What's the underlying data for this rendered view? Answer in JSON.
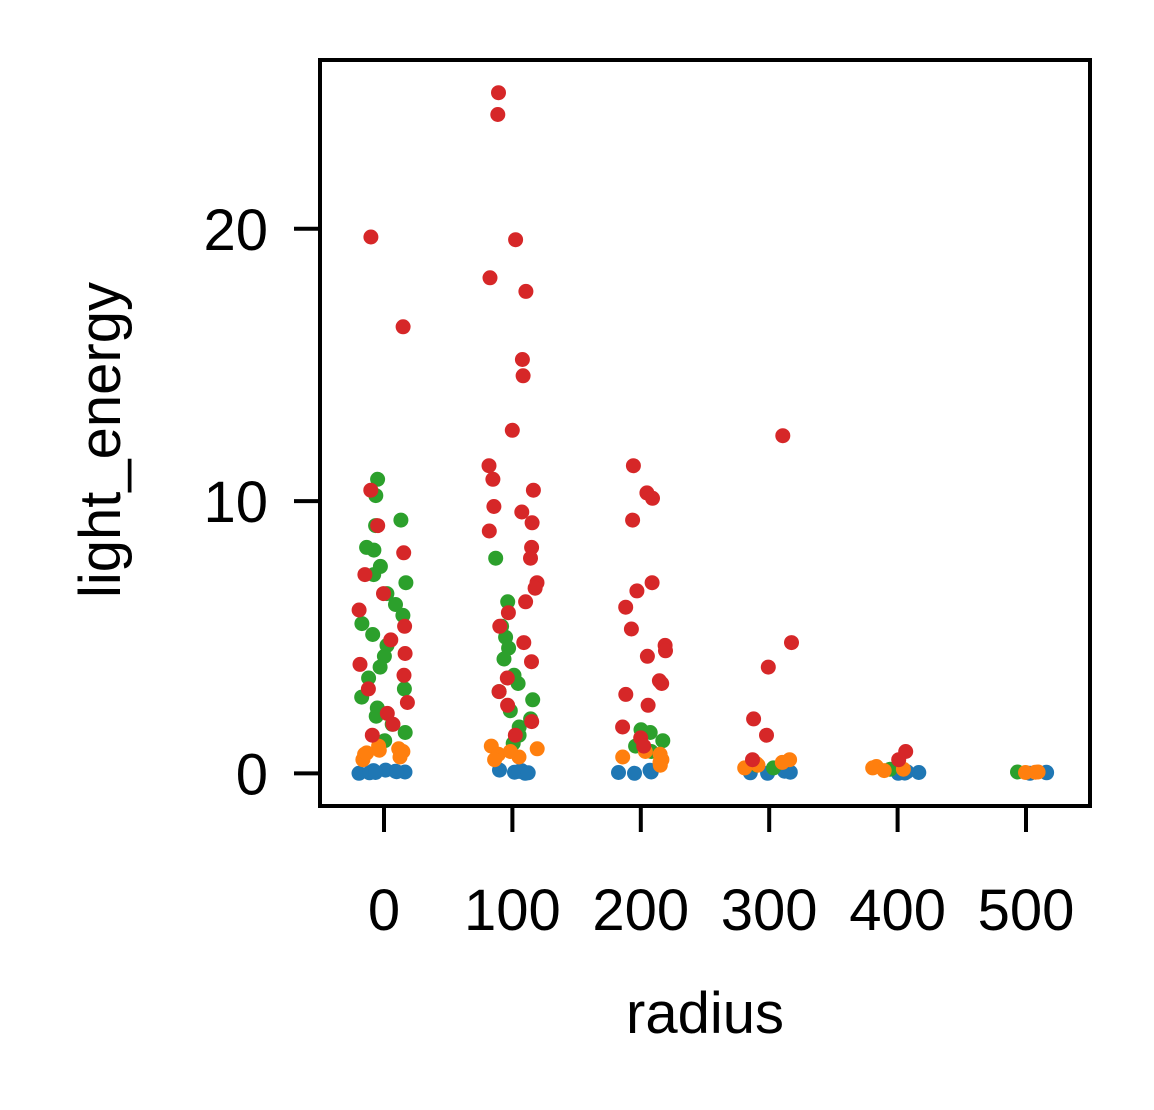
{
  "chart_data": {
    "type": "scatter",
    "style": "strip plot (jittered points per category)",
    "xlabel": "radius",
    "ylabel": "light_energy",
    "categories": [
      "0",
      "100",
      "200",
      "300",
      "400",
      "500"
    ],
    "y_ticks": [
      "0",
      "10",
      "20"
    ],
    "ylim": [
      -1.2,
      26.2
    ],
    "grid": false,
    "legend": "none",
    "series": [
      {
        "color": "#1f77b4",
        "points": [
          {
            "category": "0",
            "y": 0.0
          },
          {
            "category": "0",
            "y": 0.05
          },
          {
            "category": "0",
            "y": 0.1
          },
          {
            "category": "0",
            "y": 0.02
          },
          {
            "category": "0",
            "y": 0.08
          },
          {
            "category": "0",
            "y": 0.12
          },
          {
            "category": "0",
            "y": 0.03
          },
          {
            "category": "0",
            "y": 0.06
          },
          {
            "category": "100",
            "y": 0.0
          },
          {
            "category": "100",
            "y": 0.04
          },
          {
            "category": "100",
            "y": 0.1
          },
          {
            "category": "100",
            "y": 0.07
          },
          {
            "category": "100",
            "y": 0.02
          },
          {
            "category": "100",
            "y": 0.12
          },
          {
            "category": "200",
            "y": 0.0
          },
          {
            "category": "200",
            "y": 0.05
          },
          {
            "category": "200",
            "y": 0.09
          },
          {
            "category": "200",
            "y": 0.03
          },
          {
            "category": "200",
            "y": 0.11
          },
          {
            "category": "300",
            "y": 0.0
          },
          {
            "category": "300",
            "y": 0.04
          },
          {
            "category": "300",
            "y": 0.08
          },
          {
            "category": "300",
            "y": 0.02
          },
          {
            "category": "400",
            "y": 0.0
          },
          {
            "category": "400",
            "y": 0.03
          },
          {
            "category": "400",
            "y": 0.06
          },
          {
            "category": "400",
            "y": 0.01
          },
          {
            "category": "500",
            "y": 0.0
          },
          {
            "category": "500",
            "y": 0.02
          },
          {
            "category": "500",
            "y": 0.04
          }
        ]
      },
      {
        "color": "#2ca02c",
        "points": [
          {
            "category": "0",
            "y": 10.8
          },
          {
            "category": "0",
            "y": 10.2
          },
          {
            "category": "0",
            "y": 9.3
          },
          {
            "category": "0",
            "y": 9.1
          },
          {
            "category": "0",
            "y": 8.3
          },
          {
            "category": "0",
            "y": 8.2
          },
          {
            "category": "0",
            "y": 7.6
          },
          {
            "category": "0",
            "y": 7.3
          },
          {
            "category": "0",
            "y": 7.0
          },
          {
            "category": "0",
            "y": 6.6
          },
          {
            "category": "0",
            "y": 6.2
          },
          {
            "category": "0",
            "y": 5.8
          },
          {
            "category": "0",
            "y": 5.5
          },
          {
            "category": "0",
            "y": 5.1
          },
          {
            "category": "0",
            "y": 4.7
          },
          {
            "category": "0",
            "y": 4.3
          },
          {
            "category": "0",
            "y": 3.9
          },
          {
            "category": "0",
            "y": 3.5
          },
          {
            "category": "0",
            "y": 3.1
          },
          {
            "category": "0",
            "y": 2.8
          },
          {
            "category": "0",
            "y": 2.4
          },
          {
            "category": "0",
            "y": 2.1
          },
          {
            "category": "0",
            "y": 1.8
          },
          {
            "category": "0",
            "y": 1.5
          },
          {
            "category": "0",
            "y": 1.2
          },
          {
            "category": "100",
            "y": 7.9
          },
          {
            "category": "100",
            "y": 6.3
          },
          {
            "category": "100",
            "y": 5.4
          },
          {
            "category": "100",
            "y": 5.0
          },
          {
            "category": "100",
            "y": 4.6
          },
          {
            "category": "100",
            "y": 4.2
          },
          {
            "category": "100",
            "y": 3.6
          },
          {
            "category": "100",
            "y": 3.3
          },
          {
            "category": "100",
            "y": 3.0
          },
          {
            "category": "100",
            "y": 2.7
          },
          {
            "category": "100",
            "y": 2.3
          },
          {
            "category": "100",
            "y": 2.0
          },
          {
            "category": "100",
            "y": 1.7
          },
          {
            "category": "100",
            "y": 1.4
          },
          {
            "category": "100",
            "y": 1.1
          },
          {
            "category": "200",
            "y": 1.6
          },
          {
            "category": "200",
            "y": 1.5
          },
          {
            "category": "200",
            "y": 1.2
          },
          {
            "category": "200",
            "y": 1.0
          },
          {
            "category": "200",
            "y": 0.8
          },
          {
            "category": "300",
            "y": 0.3
          },
          {
            "category": "300",
            "y": 0.2
          },
          {
            "category": "400",
            "y": 0.15
          },
          {
            "category": "500",
            "y": 0.05
          }
        ]
      },
      {
        "color": "#ff7f0e",
        "points": [
          {
            "category": "0",
            "y": 1.0
          },
          {
            "category": "0",
            "y": 0.9
          },
          {
            "category": "0",
            "y": 0.8
          },
          {
            "category": "0",
            "y": 0.7
          },
          {
            "category": "0",
            "y": 0.6
          },
          {
            "category": "0",
            "y": 0.5
          },
          {
            "category": "0",
            "y": 0.85
          },
          {
            "category": "0",
            "y": 0.75
          },
          {
            "category": "100",
            "y": 1.0
          },
          {
            "category": "100",
            "y": 0.9
          },
          {
            "category": "100",
            "y": 0.7
          },
          {
            "category": "100",
            "y": 0.6
          },
          {
            "category": "100",
            "y": 0.5
          },
          {
            "category": "100",
            "y": 0.8
          },
          {
            "category": "200",
            "y": 0.8
          },
          {
            "category": "200",
            "y": 0.6
          },
          {
            "category": "200",
            "y": 0.5
          },
          {
            "category": "200",
            "y": 0.4
          },
          {
            "category": "200",
            "y": 0.3
          },
          {
            "category": "200",
            "y": 0.7
          },
          {
            "category": "300",
            "y": 0.5
          },
          {
            "category": "300",
            "y": 0.4
          },
          {
            "category": "300",
            "y": 0.3
          },
          {
            "category": "300",
            "y": 0.2
          },
          {
            "category": "300",
            "y": 0.35
          },
          {
            "category": "400",
            "y": 0.25
          },
          {
            "category": "400",
            "y": 0.2
          },
          {
            "category": "400",
            "y": 0.15
          },
          {
            "category": "400",
            "y": 0.1
          },
          {
            "category": "500",
            "y": 0.05
          },
          {
            "category": "500",
            "y": 0.03
          },
          {
            "category": "500",
            "y": 0.04
          }
        ]
      },
      {
        "color": "#d62728",
        "points": [
          {
            "category": "0",
            "y": 19.7
          },
          {
            "category": "0",
            "y": 16.4
          },
          {
            "category": "0",
            "y": 10.4
          },
          {
            "category": "0",
            "y": 9.1
          },
          {
            "category": "0",
            "y": 8.1
          },
          {
            "category": "0",
            "y": 7.3
          },
          {
            "category": "0",
            "y": 6.6
          },
          {
            "category": "0",
            "y": 6.0
          },
          {
            "category": "0",
            "y": 5.4
          },
          {
            "category": "0",
            "y": 4.9
          },
          {
            "category": "0",
            "y": 4.4
          },
          {
            "category": "0",
            "y": 4.0
          },
          {
            "category": "0",
            "y": 3.6
          },
          {
            "category": "0",
            "y": 3.1
          },
          {
            "category": "0",
            "y": 2.6
          },
          {
            "category": "0",
            "y": 2.2
          },
          {
            "category": "0",
            "y": 1.8
          },
          {
            "category": "0",
            "y": 1.4
          },
          {
            "category": "100",
            "y": 25.0
          },
          {
            "category": "100",
            "y": 24.2
          },
          {
            "category": "100",
            "y": 19.6
          },
          {
            "category": "100",
            "y": 18.2
          },
          {
            "category": "100",
            "y": 17.7
          },
          {
            "category": "100",
            "y": 15.2
          },
          {
            "category": "100",
            "y": 14.6
          },
          {
            "category": "100",
            "y": 12.6
          },
          {
            "category": "100",
            "y": 11.3
          },
          {
            "category": "100",
            "y": 10.8
          },
          {
            "category": "100",
            "y": 10.4
          },
          {
            "category": "100",
            "y": 9.8
          },
          {
            "category": "100",
            "y": 9.6
          },
          {
            "category": "100",
            "y": 9.2
          },
          {
            "category": "100",
            "y": 8.9
          },
          {
            "category": "100",
            "y": 8.3
          },
          {
            "category": "100",
            "y": 7.9
          },
          {
            "category": "100",
            "y": 7.0
          },
          {
            "category": "100",
            "y": 6.8
          },
          {
            "category": "100",
            "y": 6.3
          },
          {
            "category": "100",
            "y": 5.9
          },
          {
            "category": "100",
            "y": 5.4
          },
          {
            "category": "100",
            "y": 4.8
          },
          {
            "category": "100",
            "y": 4.1
          },
          {
            "category": "100",
            "y": 3.5
          },
          {
            "category": "100",
            "y": 3.0
          },
          {
            "category": "100",
            "y": 2.5
          },
          {
            "category": "100",
            "y": 1.9
          },
          {
            "category": "100",
            "y": 1.4
          },
          {
            "category": "200",
            "y": 11.3
          },
          {
            "category": "200",
            "y": 10.3
          },
          {
            "category": "200",
            "y": 10.1
          },
          {
            "category": "200",
            "y": 9.3
          },
          {
            "category": "200",
            "y": 7.0
          },
          {
            "category": "200",
            "y": 6.7
          },
          {
            "category": "200",
            "y": 6.1
          },
          {
            "category": "200",
            "y": 5.3
          },
          {
            "category": "200",
            "y": 4.7
          },
          {
            "category": "200",
            "y": 4.5
          },
          {
            "category": "200",
            "y": 4.3
          },
          {
            "category": "200",
            "y": 3.4
          },
          {
            "category": "200",
            "y": 3.3
          },
          {
            "category": "200",
            "y": 2.9
          },
          {
            "category": "200",
            "y": 2.5
          },
          {
            "category": "200",
            "y": 1.7
          },
          {
            "category": "200",
            "y": 1.3
          },
          {
            "category": "200",
            "y": 1.0
          },
          {
            "category": "300",
            "y": 12.4
          },
          {
            "category": "300",
            "y": 4.8
          },
          {
            "category": "300",
            "y": 3.9
          },
          {
            "category": "300",
            "y": 2.0
          },
          {
            "category": "300",
            "y": 1.4
          },
          {
            "category": "300",
            "y": 0.5
          },
          {
            "category": "400",
            "y": 0.8
          },
          {
            "category": "400",
            "y": 0.5
          }
        ]
      }
    ]
  }
}
